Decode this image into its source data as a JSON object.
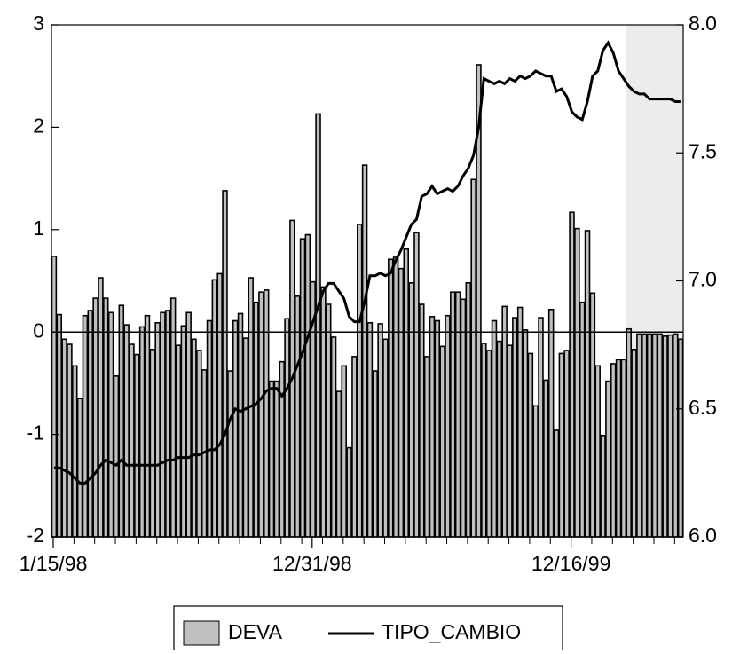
{
  "chart_data": {
    "type": "bar_line",
    "categories": [
      "1/15/98",
      null,
      null,
      null,
      null,
      null,
      null,
      null,
      null,
      null,
      null,
      null,
      null,
      null,
      null,
      null,
      null,
      null,
      null,
      null,
      null,
      null,
      null,
      null,
      null,
      null,
      null,
      null,
      null,
      null,
      null,
      null,
      null,
      null,
      null,
      null,
      null,
      null,
      null,
      null,
      null,
      null,
      null,
      null,
      null,
      null,
      null,
      null,
      null,
      null,
      "12/31/98",
      null,
      null,
      null,
      null,
      null,
      null,
      null,
      null,
      null,
      null,
      null,
      null,
      null,
      null,
      null,
      null,
      null,
      null,
      null,
      null,
      null,
      null,
      null,
      null,
      null,
      null,
      null,
      null,
      null,
      null,
      null,
      null,
      null,
      null,
      null,
      null,
      null,
      null,
      null,
      null,
      null,
      null,
      null,
      null,
      null,
      null,
      null,
      null,
      null,
      "12/16/99",
      null,
      null,
      null,
      null,
      null,
      null,
      null,
      null,
      null,
      null,
      null,
      null,
      null,
      null,
      null,
      null,
      null,
      null,
      null,
      null,
      null
    ],
    "series": [
      {
        "name": "DEVA",
        "color": "#c0c0c0",
        "values": [
          0.74,
          0.17,
          -0.07,
          -0.12,
          -0.33,
          -0.65,
          0.16,
          0.21,
          0.33,
          0.53,
          0.33,
          0.19,
          -0.43,
          0.26,
          0.07,
          -0.12,
          -0.22,
          0.05,
          0.16,
          -0.17,
          0.09,
          0.19,
          0.21,
          0.33,
          -0.13,
          0.06,
          0.19,
          -0.07,
          -0.18,
          -0.37,
          0.11,
          0.51,
          0.57,
          1.38,
          -0.38,
          0.11,
          0.18,
          -0.06,
          0.53,
          0.29,
          0.39,
          0.41,
          -0.48,
          -0.48,
          -0.29,
          0.13,
          1.09,
          0.35,
          0.91,
          0.95,
          0.49,
          2.13,
          0.44,
          0.27,
          -0.05,
          -0.58,
          -0.33,
          -1.13,
          -0.24,
          1.05,
          1.63,
          0.09,
          -0.38,
          0.08,
          -0.07,
          0.71,
          0.73,
          0.62,
          0.81,
          0.48,
          0.97,
          0.27,
          -0.24,
          0.15,
          0.11,
          -0.14,
          0.16,
          0.39,
          0.39,
          0.32,
          0.48,
          1.49,
          2.61,
          -0.11,
          -0.18,
          0.11,
          -0.09,
          0.25,
          -0.13,
          0.14,
          0.24,
          0.02,
          -0.21,
          -0.72,
          0.14,
          -0.47,
          0.22,
          -0.96,
          -0.21,
          -0.18,
          1.17,
          1.01,
          0.29,
          0.99,
          0.38,
          -0.33,
          -1.01,
          -0.48,
          -0.31,
          -0.27,
          -0.27,
          0.03,
          -0.17,
          -0.02,
          -0.02,
          -0.02,
          -0.02,
          -0.02,
          -0.04,
          -0.03,
          -0.02,
          -0.07
        ]
      },
      {
        "name": "TIPO_CAMBIO",
        "color": "#000000",
        "axis": "y2",
        "values": [
          6.27,
          6.27,
          6.26,
          6.25,
          6.23,
          6.21,
          6.21,
          6.23,
          6.25,
          6.28,
          6.3,
          6.29,
          6.28,
          6.3,
          6.28,
          6.28,
          6.28,
          6.28,
          6.28,
          6.28,
          6.28,
          6.29,
          6.3,
          6.3,
          6.31,
          6.31,
          6.31,
          6.32,
          6.32,
          6.33,
          6.34,
          6.34,
          6.36,
          6.4,
          6.46,
          6.5,
          6.49,
          6.5,
          6.51,
          6.52,
          6.54,
          6.57,
          6.58,
          6.58,
          6.55,
          6.58,
          6.62,
          6.67,
          6.72,
          6.78,
          6.84,
          6.9,
          6.96,
          6.99,
          6.99,
          6.96,
          6.93,
          6.86,
          6.84,
          6.84,
          6.92,
          7.02,
          7.02,
          7.03,
          7.02,
          7.03,
          7.08,
          7.12,
          7.17,
          7.22,
          7.24,
          7.33,
          7.34,
          7.37,
          7.34,
          7.35,
          7.36,
          7.35,
          7.37,
          7.41,
          7.44,
          7.49,
          7.6,
          7.79,
          7.78,
          7.77,
          7.78,
          7.77,
          7.79,
          7.78,
          7.8,
          7.79,
          7.8,
          7.82,
          7.81,
          7.8,
          7.8,
          7.74,
          7.75,
          7.72,
          7.66,
          7.64,
          7.63,
          7.7,
          7.8,
          7.82,
          7.9,
          7.93,
          7.89,
          7.82,
          7.79,
          7.76,
          7.74,
          7.73,
          7.73,
          7.71,
          7.71,
          7.71,
          7.71,
          7.71,
          7.7,
          7.7
        ]
      }
    ],
    "ylim": [
      -2,
      3
    ],
    "yticks": [
      -2,
      -1,
      0,
      1,
      2,
      3
    ],
    "y2lim": [
      6,
      8
    ],
    "y2ticks": [
      {
        "value": 6,
        "label": "6.0"
      },
      {
        "value": 6.5,
        "label": "6.5"
      },
      {
        "value": 7,
        "label": "7.0"
      },
      {
        "value": 7.5,
        "label": "7.5"
      },
      {
        "value": 8,
        "label": "8.0"
      }
    ],
    "shade": [
      111,
      121
    ],
    "shade_color": "#ececec",
    "legend": "bottom"
  }
}
